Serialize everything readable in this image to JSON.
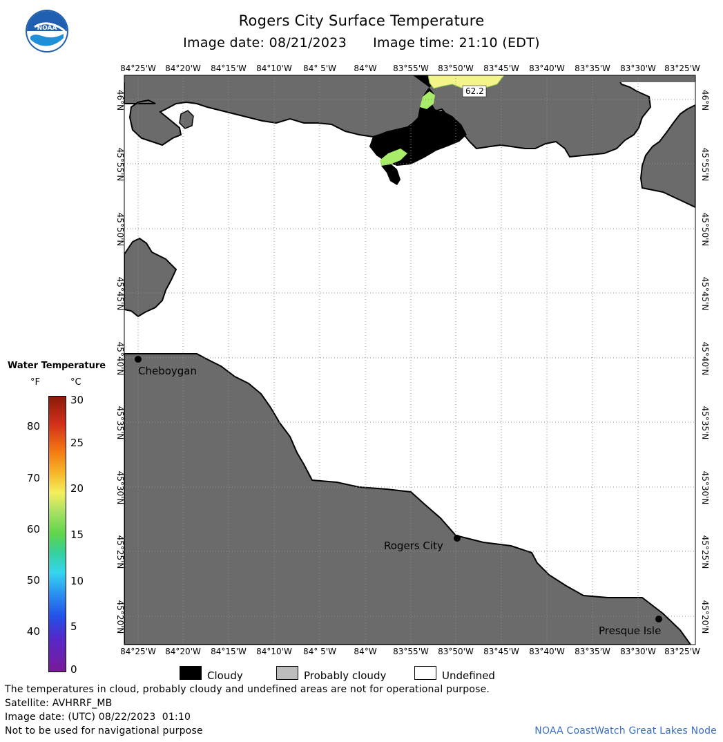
{
  "header": {
    "title": "Rogers City Surface Temperature",
    "date_label": "Image date:",
    "date_value": "08/21/2023",
    "time_label": "Image time:",
    "time_value": "21:10 (EDT)"
  },
  "map": {
    "lon_labels": [
      "84°25'W",
      "84°20'W",
      "84°15'W",
      "84°10'W",
      "84° 5'W",
      "84°W",
      "83°55'W",
      "83°50'W",
      "83°45'W",
      "83°40'W",
      "83°35'W",
      "83°30'W",
      "83°25'W"
    ],
    "lat_labels": [
      "46°N",
      "45°55'N",
      "45°50'N",
      "45°45'N",
      "45°40'N",
      "45°35'N",
      "45°30'N",
      "45°25'N",
      "45°20'N"
    ],
    "cities": [
      {
        "name": "Cheboygan"
      },
      {
        "name": "Rogers City"
      },
      {
        "name": "Presque Isle"
      }
    ],
    "temp_callout": "62.2",
    "colors": {
      "land": "#6b6b6b",
      "cloudy": "#000000",
      "water_undefined": "#ffffff",
      "warm_water": "#f3f58a",
      "cool_water": "#a8ec6a",
      "grid": "#8c8c8c"
    }
  },
  "legend": {
    "title": "Water Temperature",
    "unit_f": "°F",
    "unit_c": "°C",
    "f_ticks": [
      "80",
      "70",
      "60",
      "50",
      "40"
    ],
    "c_ticks": [
      "30",
      "25",
      "20",
      "15",
      "10",
      "5",
      "0"
    ]
  },
  "key": {
    "cloudy": "Cloudy",
    "probably_cloudy": "Probably cloudy",
    "undefined": "Undefined"
  },
  "footer": {
    "disclaimer": "The temperatures in cloud, probably cloudy and undefined areas are not for operational purpose.",
    "satellite": "Satellite: AVHRRF_MB",
    "image_date_utc": "Image date: (UTC) 08/22/2023  01:10",
    "nav_warning": "Not to be used for navigational purpose",
    "credit": "NOAA CoastWatch Great Lakes Node"
  }
}
